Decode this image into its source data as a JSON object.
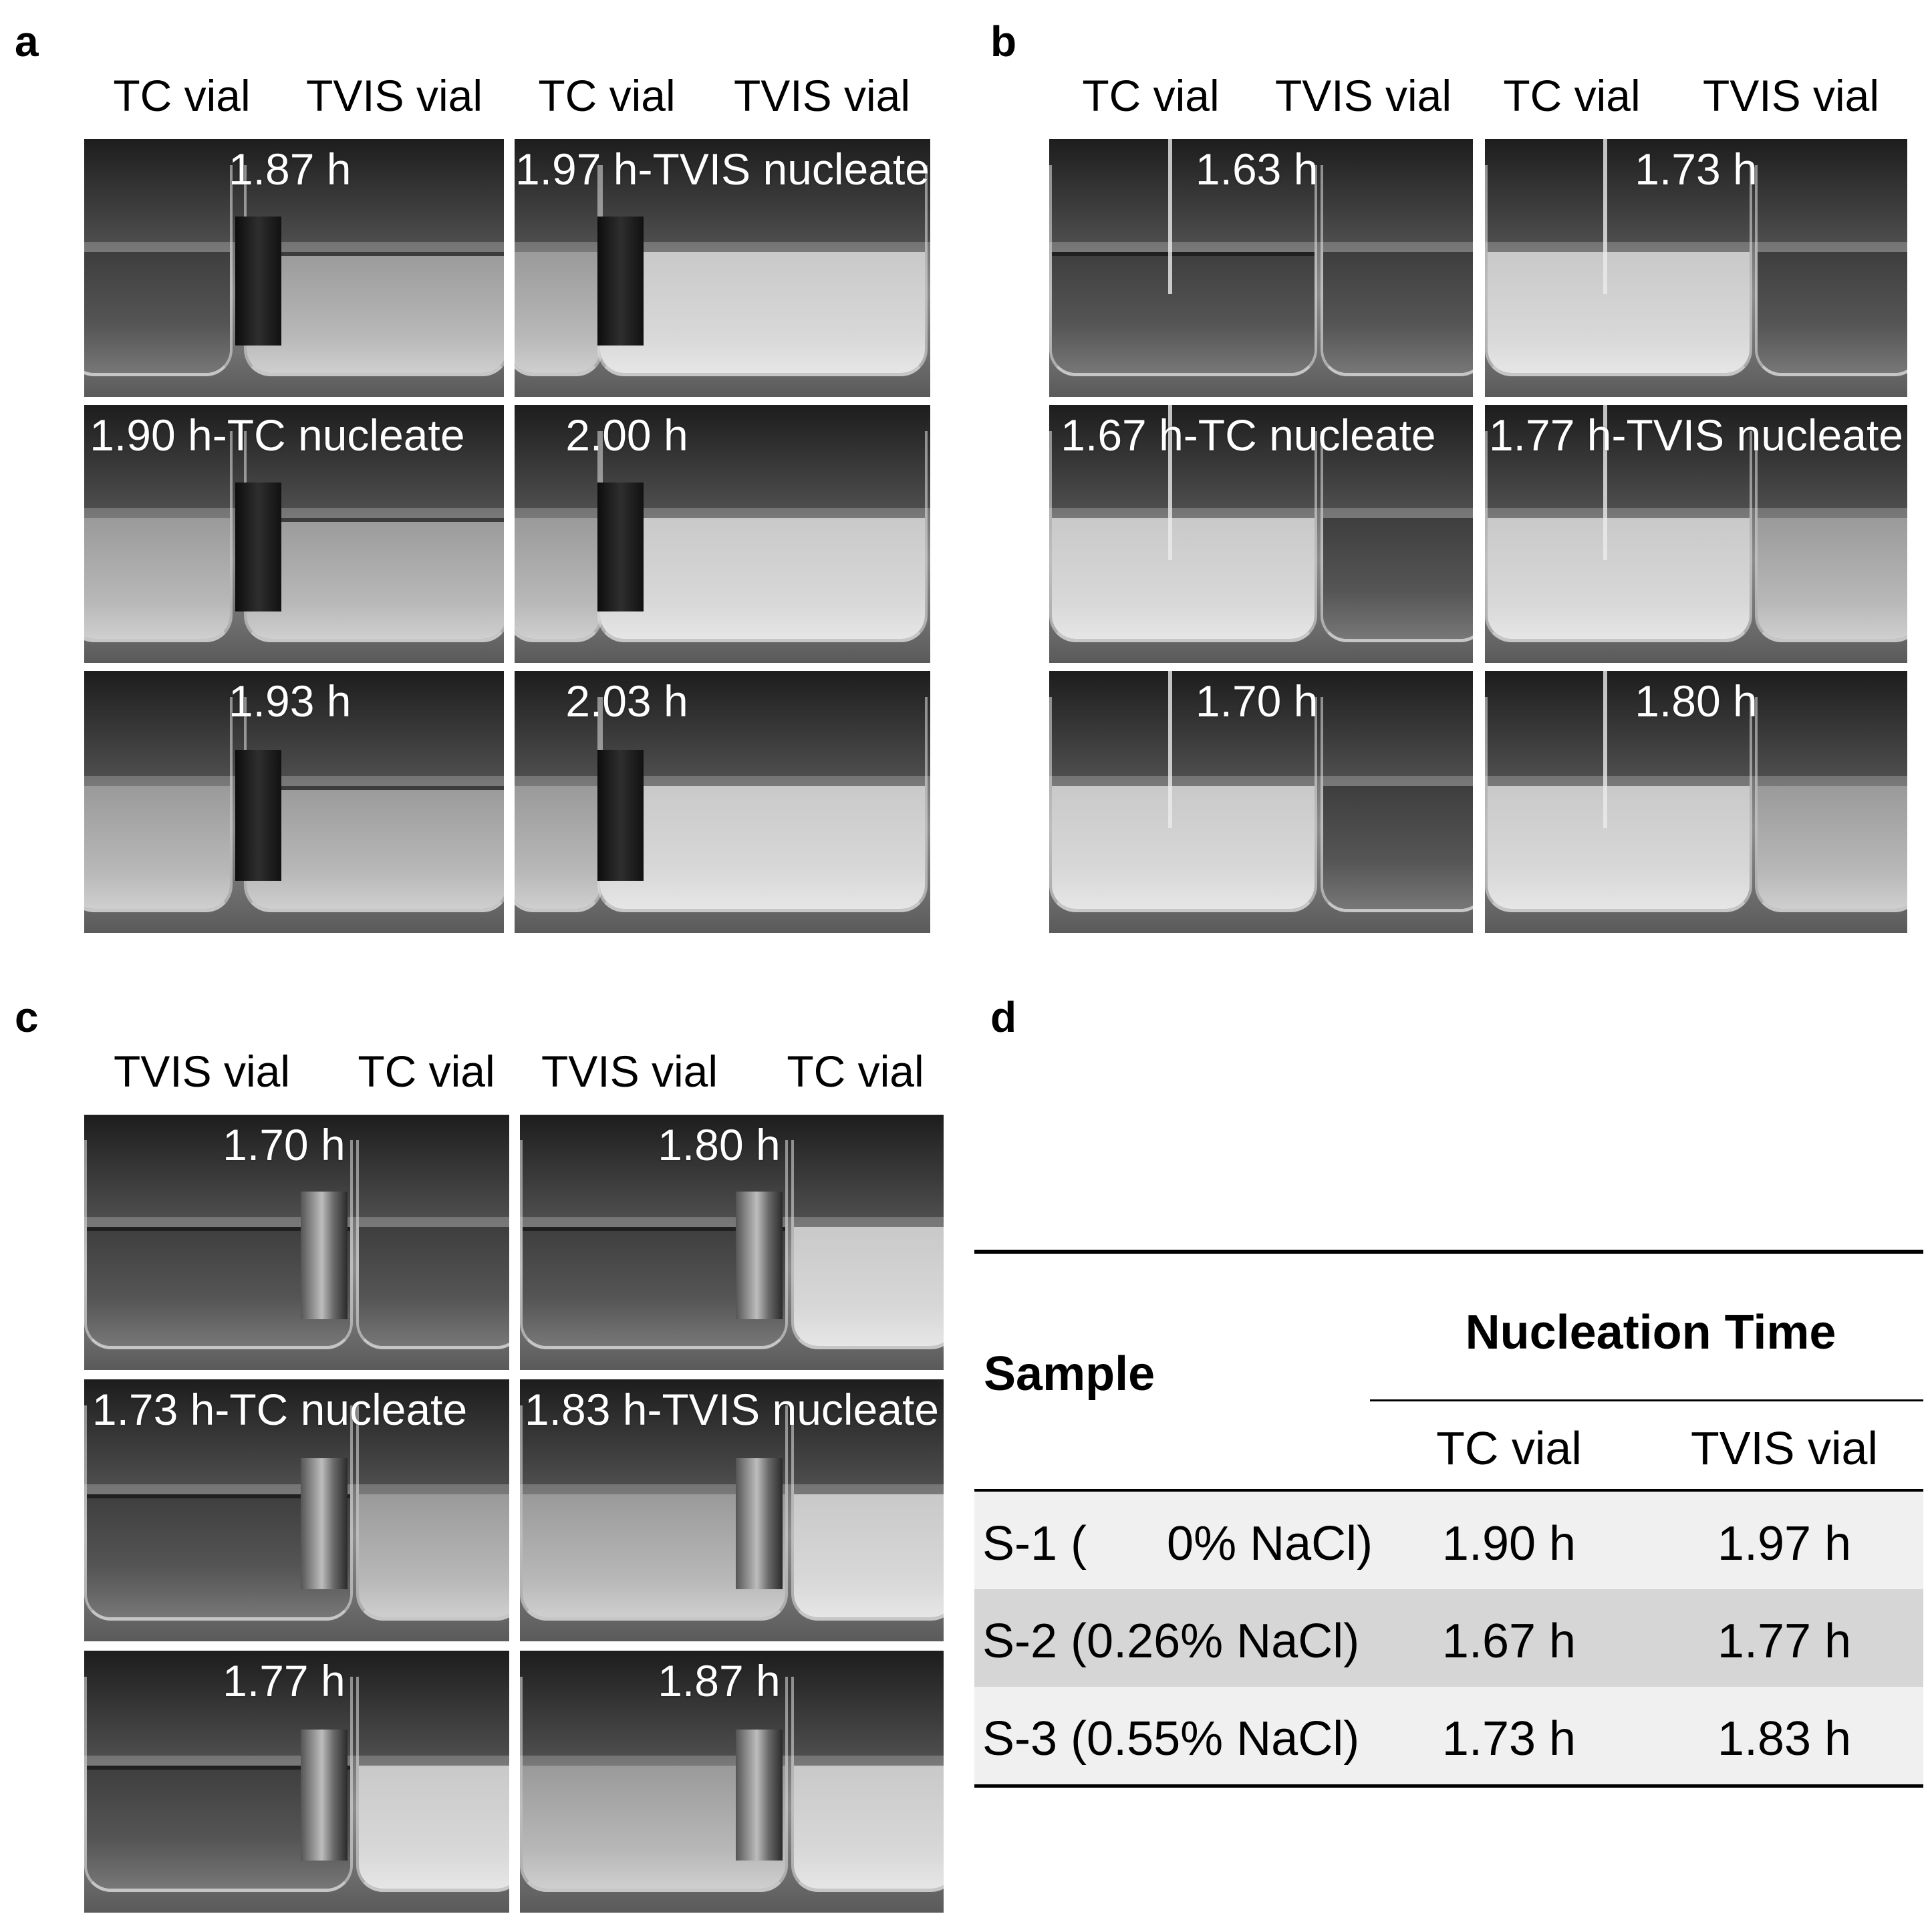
{
  "panels": {
    "a": {
      "letter": "a",
      "column_labels": [
        "TC vial",
        "TVIS vial",
        "TC vial",
        "TVIS vial"
      ],
      "frames": [
        "1.87 h",
        "1.97 h-TVIS nucleate",
        "1.90 h-TC nucleate",
        "2.00 h",
        "1.93 h",
        "2.03 h"
      ]
    },
    "b": {
      "letter": "b",
      "column_labels": [
        "TC vial",
        "TVIS vial",
        "TC vial",
        "TVIS vial"
      ],
      "frames": [
        "1.63 h",
        "1.73 h",
        "1.67 h-TC nucleate",
        "1.77 h-TVIS nucleate",
        "1.70 h",
        "1.80 h"
      ]
    },
    "c": {
      "letter": "c",
      "column_labels": [
        "TVIS vial",
        "TC vial",
        "TVIS vial",
        "TC vial"
      ],
      "frames": [
        "1.70 h",
        "1.80 h",
        "1.73 h-TC nucleate",
        "1.83 h-TVIS nucleate",
        "1.77 h",
        "1.87 h"
      ]
    },
    "d": {
      "letter": "d",
      "table": {
        "sample_header": "Sample",
        "group_header": "Nucleation Time",
        "sub_headers": [
          "TC vial",
          "TVIS vial"
        ],
        "rows": [
          {
            "sample": "S-1 (      0% NaCl)",
            "tc": "1.90 h",
            "tvis": "1.97 h"
          },
          {
            "sample": "S-2 (0.26% NaCl)",
            "tc": "1.67 h",
            "tvis": "1.77 h"
          },
          {
            "sample": "S-3 (0.55% NaCl)",
            "tc": "1.73 h",
            "tvis": "1.83 h"
          }
        ],
        "row_colors": [
          "#f0f0f0",
          "#d6d6d6",
          "#f0f0f0"
        ]
      }
    }
  }
}
